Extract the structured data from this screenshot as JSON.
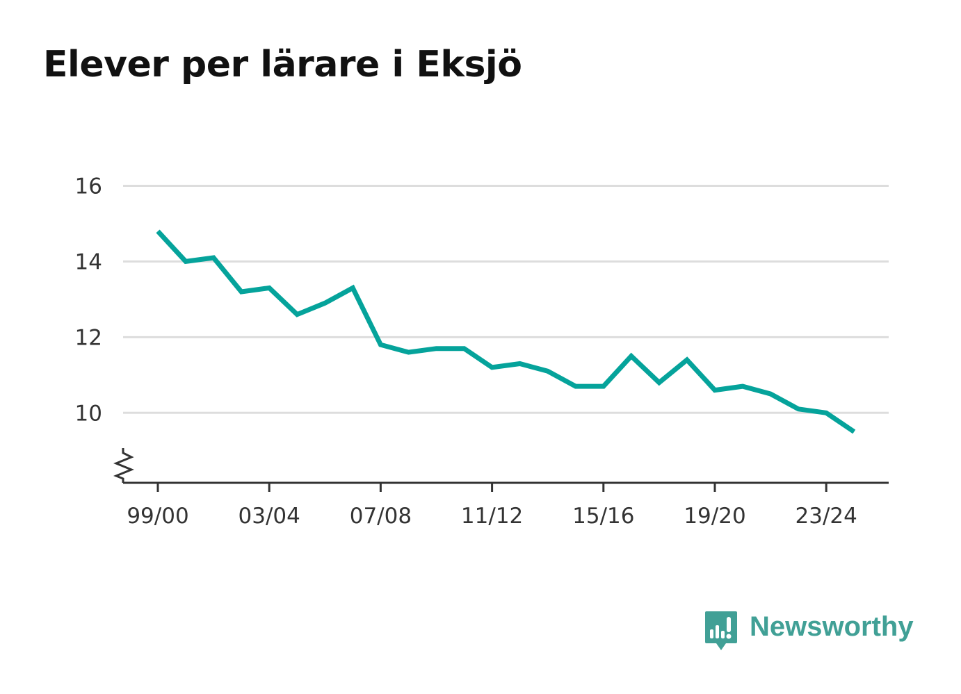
{
  "chart_data": {
    "type": "line",
    "title": "Elever per lärare i Eksjö",
    "xlabel": "",
    "ylabel": "",
    "categories": [
      "99/00",
      "00/01",
      "01/02",
      "02/03",
      "03/04",
      "04/05",
      "05/06",
      "06/07",
      "07/08",
      "08/09",
      "09/10",
      "10/11",
      "11/12",
      "12/13",
      "13/14",
      "14/15",
      "15/16",
      "16/17",
      "17/18",
      "18/19",
      "19/20",
      "20/21",
      "21/22",
      "22/23",
      "23/24",
      "24/25"
    ],
    "x_tick_labels": [
      "99/00",
      "03/04",
      "07/08",
      "11/12",
      "15/16",
      "19/20",
      "23/24"
    ],
    "series": [
      {
        "values": [
          14.8,
          14.0,
          14.1,
          13.2,
          13.3,
          12.6,
          12.9,
          13.3,
          11.8,
          11.6,
          11.7,
          11.7,
          11.2,
          11.3,
          11.1,
          10.7,
          10.7,
          11.5,
          10.8,
          11.4,
          10.6,
          10.7,
          10.5,
          10.1,
          10.0,
          9.5
        ],
        "color": "#05a39b"
      }
    ],
    "y_ticks": [
      10,
      12,
      14,
      16
    ],
    "ylim": [
      8.15,
      16
    ],
    "y_axis_break": true,
    "grid": true,
    "grid_color": "#dddddd",
    "legend": "none"
  },
  "brand": {
    "name": "Newsworthy",
    "color": "#41a096",
    "icon": "newsworthy-logo-icon"
  }
}
